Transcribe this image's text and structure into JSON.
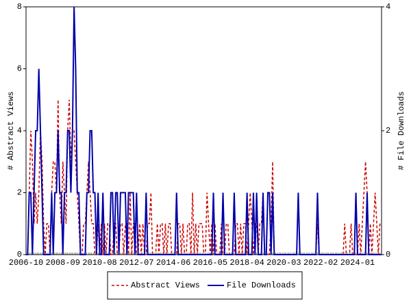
{
  "chart_data": {
    "type": "line",
    "y_label": "# Abstract Views",
    "y2_label": "# File Downloads",
    "categories": [
      "2006-10",
      null,
      null,
      null,
      null,
      null,
      null,
      null,
      null,
      null,
      null,
      null,
      null,
      null,
      null,
      null,
      null,
      null,
      null,
      null,
      null,
      null,
      null,
      "2008-09",
      null,
      null,
      null,
      null,
      null,
      null,
      null,
      null,
      null,
      null,
      null,
      null,
      null,
      null,
      null,
      null,
      null,
      null,
      null,
      null,
      null,
      null,
      "2010-08",
      null,
      null,
      null,
      null,
      null,
      null,
      null,
      null,
      null,
      null,
      null,
      null,
      null,
      null,
      null,
      null,
      null,
      null,
      null,
      null,
      null,
      null,
      "2012-07",
      null,
      null,
      null,
      null,
      null,
      null,
      null,
      null,
      null,
      null,
      null,
      null,
      null,
      null,
      null,
      null,
      null,
      null,
      null,
      null,
      null,
      null,
      "2014-06",
      null,
      null,
      null,
      null,
      null,
      null,
      null,
      null,
      null,
      null,
      null,
      null,
      null,
      null,
      null,
      null,
      null,
      null,
      null,
      null,
      null,
      null,
      "2016-05",
      null,
      null,
      null,
      null,
      null,
      null,
      null,
      null,
      null,
      null,
      null,
      null,
      null,
      null,
      null,
      null,
      null,
      null,
      null,
      null,
      null,
      null,
      "2018-04",
      null,
      null,
      null,
      null,
      null,
      null,
      null,
      null,
      null,
      null,
      null,
      null,
      null,
      null,
      null,
      null,
      null,
      null,
      null,
      null,
      null,
      null,
      "2020-03",
      null,
      null,
      null,
      null,
      null,
      null,
      null,
      null,
      null,
      null,
      null,
      null,
      null,
      null,
      null,
      null,
      null,
      null,
      null,
      null,
      null,
      null,
      "2022-02",
      null,
      null,
      null,
      null,
      null,
      null,
      null,
      null,
      null,
      null,
      null,
      null,
      null,
      null,
      null,
      null,
      null,
      null,
      null,
      null,
      null,
      null,
      "2024-01",
      null,
      null,
      null,
      null,
      null,
      null,
      null,
      null,
      null,
      null,
      null,
      null,
      null,
      null,
      null
    ],
    "series": [
      {
        "name": "Abstract Views",
        "color": "#cc0000",
        "dash": true,
        "values": [
          0,
          0,
          2,
          4,
          3,
          1,
          2,
          1,
          2,
          4,
          3,
          1,
          0,
          1,
          1,
          0,
          2,
          3,
          3,
          2,
          5,
          2,
          1,
          3,
          2,
          1,
          4,
          5,
          3,
          4,
          4,
          3,
          2,
          1,
          0,
          0,
          1,
          1,
          2,
          3,
          2,
          1,
          1,
          0,
          0,
          1,
          0,
          1,
          0,
          1,
          0,
          1,
          1,
          0,
          0,
          1,
          1,
          0,
          0,
          1,
          1,
          0,
          1,
          1,
          0,
          2,
          0,
          1,
          1,
          0,
          0,
          1,
          0,
          1,
          0,
          0,
          1,
          1,
          2,
          0,
          0,
          0,
          1,
          0,
          1,
          1,
          0,
          1,
          0,
          1,
          1,
          0,
          0,
          0,
          0,
          1,
          1,
          0,
          1,
          0,
          0,
          1,
          1,
          0,
          2,
          0,
          1,
          0,
          1,
          1,
          1,
          0,
          0,
          2,
          1,
          0,
          1,
          0,
          1,
          0,
          0,
          0,
          1,
          0,
          0,
          1,
          1,
          0,
          0,
          0,
          0,
          1,
          1,
          0,
          1,
          0,
          1,
          1,
          0,
          1,
          2,
          1,
          0,
          1,
          1,
          0,
          1,
          1,
          2,
          0,
          0,
          0,
          0,
          1,
          3,
          0,
          0,
          0,
          0,
          0,
          0,
          0,
          0,
          0,
          0,
          0,
          0,
          0,
          0,
          0,
          2,
          0,
          0,
          0,
          0,
          0,
          0,
          0,
          0,
          0,
          0,
          0,
          1,
          0,
          0,
          0,
          0,
          0,
          0,
          0,
          0,
          0,
          0,
          0,
          0,
          0,
          0,
          0,
          0,
          1,
          0,
          0,
          0,
          1,
          0,
          0,
          0,
          0,
          1,
          0,
          1,
          2,
          3,
          2,
          0,
          1,
          0,
          1,
          2,
          1,
          0,
          1,
          1
        ]
      },
      {
        "name": "File Downloads",
        "color": "#0000aa",
        "axis": "y2",
        "values": [
          0,
          0,
          1,
          1,
          0,
          1,
          2,
          2,
          3,
          2,
          1,
          0,
          0,
          0,
          0,
          0,
          1,
          0,
          1,
          1,
          2,
          1,
          1,
          0,
          1,
          1,
          2,
          2,
          1,
          2,
          4,
          3,
          1,
          1,
          0,
          0,
          0,
          0,
          1,
          1,
          2,
          2,
          1,
          1,
          0,
          1,
          0,
          0,
          1,
          0,
          0,
          0,
          0,
          1,
          1,
          0,
          1,
          1,
          0,
          1,
          1,
          1,
          1,
          0,
          1,
          1,
          1,
          1,
          0,
          1,
          0,
          0,
          0,
          0,
          0,
          1,
          0,
          0,
          0,
          0,
          0,
          0,
          0,
          0,
          0,
          0,
          0,
          0,
          0,
          0,
          0,
          0,
          0,
          0,
          1,
          0,
          0,
          0,
          0,
          0,
          0,
          0,
          0,
          0,
          0,
          0,
          0,
          0,
          0,
          0,
          0,
          0,
          0,
          0,
          0,
          0,
          0,
          1,
          0,
          0,
          0,
          0,
          0,
          1,
          0,
          0,
          0,
          0,
          0,
          0,
          1,
          0,
          0,
          0,
          0,
          0,
          0,
          0,
          1,
          0,
          0,
          0,
          1,
          0,
          1,
          0,
          0,
          0,
          1,
          0,
          0,
          1,
          1,
          0,
          1,
          0,
          0,
          0,
          0,
          0,
          0,
          0,
          0,
          0,
          0,
          0,
          0,
          0,
          0,
          0,
          1,
          0,
          0,
          0,
          0,
          0,
          0,
          0,
          0,
          0,
          0,
          0,
          1,
          0,
          0,
          0,
          0,
          0,
          0,
          0,
          0,
          0,
          0,
          0,
          0,
          0,
          0,
          0,
          0,
          0,
          0,
          0,
          0,
          0,
          0,
          0,
          1,
          0,
          0,
          0,
          0,
          0,
          0,
          1,
          0,
          0,
          0,
          0,
          0,
          0,
          0,
          0,
          0
        ]
      }
    ],
    "ylim": [
      0,
      8
    ],
    "yticks": [
      0,
      2,
      4,
      6,
      8
    ],
    "y2lim": [
      0,
      4
    ],
    "y2ticks": [
      0,
      2,
      4
    ],
    "legend": "bottom"
  }
}
